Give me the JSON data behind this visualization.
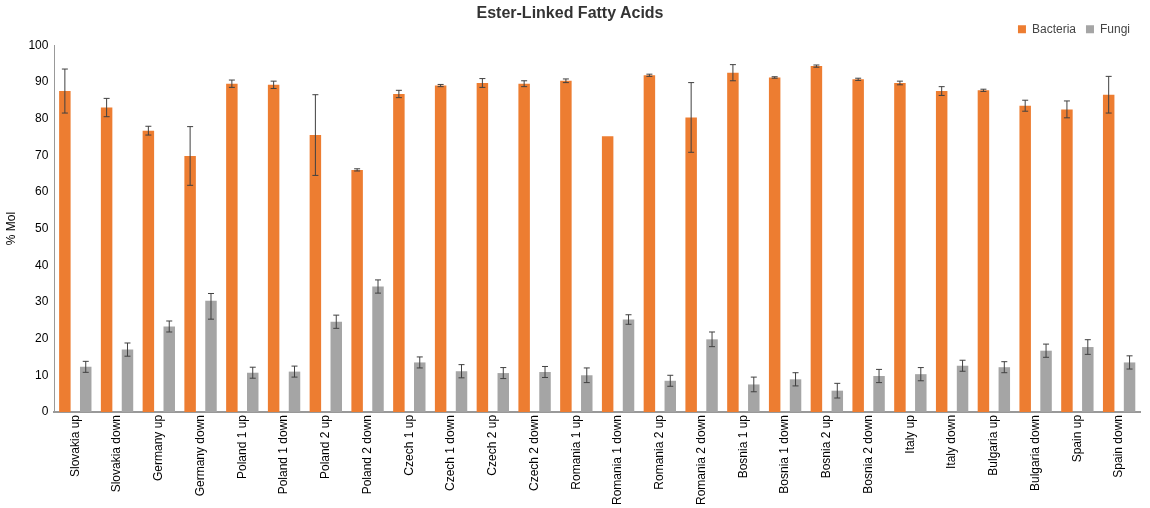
{
  "chart_data": {
    "type": "bar",
    "title": "Ester-Linked Fatty Acids",
    "ylabel": "% Mol",
    "categories": [
      "Slovakia up",
      "Slovakia down",
      "Germany up",
      "Germany down",
      "Poland 1 up",
      "Poland 1 down",
      "Poland 2 up",
      "Poland 2 down",
      "Czech 1 up",
      "Czech 1 down",
      "Czech 2 up",
      "Czech 2 down",
      "Romania 1 up",
      "Romania 1 down",
      "Romania 2 up",
      "Romania 2 down",
      "Bosnia 1 up",
      "Bosnia 1 down",
      "Bosnia 2 up",
      "Bosnia 2 down",
      "Italy up",
      "Italy down",
      "Bulgaria up",
      "Bulgaria down",
      "Spain up",
      "Spain down"
    ],
    "series": [
      {
        "name": "Bacteria",
        "color": "#ed7d31",
        "values": [
          87.5,
          83,
          76.7,
          69.8,
          89.5,
          89.2,
          75.5,
          66,
          86.7,
          89,
          89.7,
          89.5,
          90.3,
          75.2,
          91.8,
          80.3,
          92.5,
          91.2,
          94.3,
          90.7,
          89.7,
          87.5,
          87.7,
          83.5,
          82.5,
          86.5
        ],
        "errors": [
          6,
          2.5,
          1.2,
          8,
          1,
          1,
          11,
          0.3,
          1,
          0.3,
          1.2,
          0.8,
          0.5,
          null,
          0.3,
          9.5,
          2.2,
          0.2,
          0.3,
          0.3,
          0.5,
          1.2,
          0.3,
          1.5,
          2.3,
          5
        ]
      },
      {
        "name": "Fungi",
        "color": "#a5a5a5",
        "values": [
          12.3,
          17,
          23.3,
          30.3,
          10.7,
          11,
          24.6,
          34.2,
          13.5,
          11.1,
          10.6,
          10.9,
          10,
          25.2,
          8.5,
          19.8,
          7.5,
          8.9,
          5.8,
          9.8,
          10.3,
          12.6,
          12.2,
          16.7,
          17.7,
          13.5
        ],
        "errors": [
          1.5,
          1.8,
          1.5,
          [
            25.3,
            32.3
          ],
          1.5,
          1.5,
          1.8,
          1.8,
          1.5,
          1.8,
          1.5,
          1.5,
          2,
          1.3,
          1.5,
          2,
          2,
          1.8,
          2,
          1.8,
          1.8,
          1.5,
          1.5,
          1.8,
          2,
          1.8
        ]
      }
    ],
    "ylim": [
      0,
      100
    ],
    "yticks": [
      0,
      10,
      20,
      30,
      40,
      50,
      60,
      70,
      80,
      90,
      100
    ],
    "grid": false,
    "legend": "top right"
  }
}
